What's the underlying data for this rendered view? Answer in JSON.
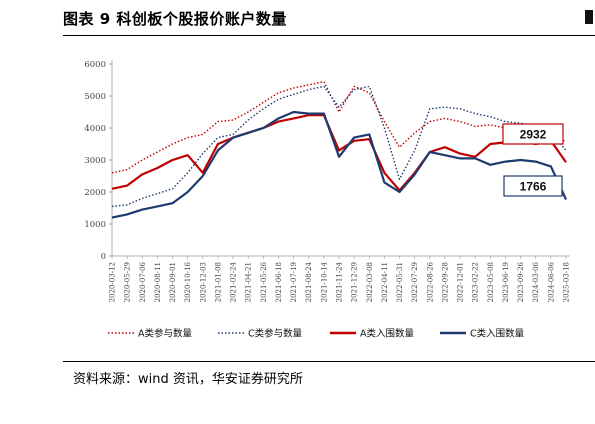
{
  "figure": {
    "title": "图表 9 科创板个股报价账户数量",
    "source": "资料来源：wind 资讯，华安证券研究所"
  },
  "colors": {
    "a_series": "#c00000",
    "c_series": "#1f3a6e",
    "axis": "#999999"
  },
  "chart_data": {
    "type": "line",
    "title": "",
    "xlabel": "",
    "ylabel": "",
    "ylim": [
      0,
      6000
    ],
    "yticks": [
      "0",
      "1000",
      "2000",
      "3000",
      "4000",
      "5000",
      "6000"
    ],
    "grid": false,
    "legend_position": "bottom",
    "x_tick_labels": [
      "2020-03-12",
      "2020-05-29",
      "2020-07-06",
      "2020-08-11",
      "2020-09-01",
      "2020-10-16",
      "2020-12-03",
      "2021-01-08",
      "2021-02-24",
      "2021-04-21",
      "2021-05-26",
      "2021-06-18",
      "2021-07-19",
      "2021-08-24",
      "2021-10-14",
      "2021-11-24",
      "2021-12-29",
      "2022-03-08",
      "2022-04-11",
      "2022-05-31",
      "2022-07-29",
      "2022-08-26",
      "2022-09-28",
      "2022-12-01",
      "2023-02-22",
      "2023-05-08",
      "2023-06-19",
      "2023-09-26",
      "2024-03-06",
      "2024-06-06",
      "2025-03-18"
    ],
    "series": [
      {
        "name": "A类参与数量",
        "style": "dotted",
        "color": "#c00000",
        "values": [
          2600,
          2700,
          3000,
          3250,
          3500,
          3700,
          3800,
          4200,
          4250,
          4500,
          4800,
          5100,
          5250,
          5350,
          5450,
          4500,
          5300,
          5100,
          4200,
          3400,
          3850,
          4200,
          4300,
          4200,
          4050,
          4100,
          4000,
          3900,
          3750,
          3650,
          3600
        ]
      },
      {
        "name": "C类参与数量",
        "style": "dotted",
        "color": "#1f3a6e",
        "values": [
          1550,
          1600,
          1800,
          1950,
          2100,
          2600,
          3200,
          3700,
          3800,
          4250,
          4600,
          4900,
          5050,
          5200,
          5300,
          4650,
          5200,
          5300,
          4000,
          2400,
          3300,
          4600,
          4650,
          4600,
          4450,
          4350,
          4200,
          4150,
          4050,
          3850,
          3300
        ]
      },
      {
        "name": "A类入围数量",
        "style": "solid",
        "color": "#c00000",
        "values": [
          2100,
          2200,
          2550,
          2750,
          3000,
          3150,
          2600,
          3500,
          3700,
          3850,
          4000,
          4200,
          4300,
          4400,
          4400,
          3300,
          3600,
          3650,
          2600,
          2050,
          2600,
          3250,
          3400,
          3200,
          3100,
          3500,
          3550,
          3600,
          3500,
          3600,
          2932
        ]
      },
      {
        "name": "C类入围数量",
        "style": "solid",
        "color": "#1f3a6e",
        "values": [
          1200,
          1300,
          1450,
          1550,
          1650,
          2000,
          2500,
          3300,
          3700,
          3850,
          4000,
          4300,
          4500,
          4450,
          4450,
          3100,
          3700,
          3800,
          2300,
          2000,
          2550,
          3250,
          3150,
          3050,
          3050,
          2850,
          2950,
          3000,
          2950,
          2800,
          1766
        ]
      }
    ],
    "annotations": [
      {
        "label": "2932",
        "series": "A类入围数量",
        "box_color": "#c00000"
      },
      {
        "label": "1766",
        "series": "C类入围数量",
        "box_color": "#1f3a6e"
      }
    ]
  }
}
